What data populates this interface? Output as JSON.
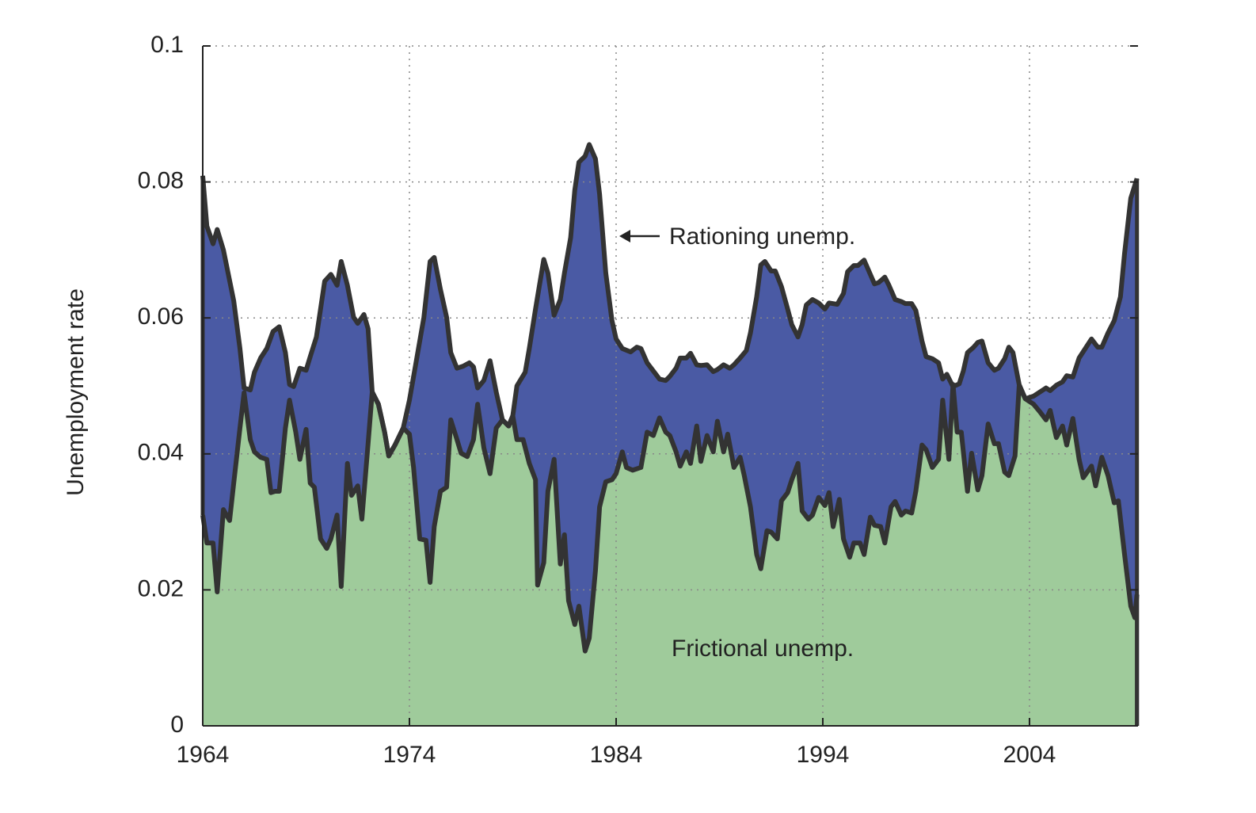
{
  "chart_data": {
    "type": "area",
    "y_label": "Unemployment rate",
    "xlim": [
      1964,
      2009.25
    ],
    "xticks": [
      1964,
      1974,
      1984,
      1994,
      2004
    ],
    "ylim": [
      0,
      0.1
    ],
    "yticks": [
      0,
      0.02,
      0.04,
      0.06,
      0.08,
      0.1
    ],
    "grid": true,
    "line_color": "#333333",
    "annotations": [
      "Rationing unemp.",
      "Frictional unemp."
    ],
    "series": [
      {
        "color": "#4a5aa4",
        "x": [
          1964.0,
          1964.2,
          1964.5,
          1964.7,
          1965.0,
          1965.5,
          1965.8,
          1966.0,
          1966.3,
          1966.5,
          1966.8,
          1967.1,
          1967.4,
          1967.7,
          1968.0,
          1968.2,
          1968.4,
          1968.7,
          1969.0,
          1969.2,
          1969.5,
          1969.9,
          1970.2,
          1970.5,
          1970.7,
          1971.0,
          1971.3,
          1971.5,
          1971.8,
          1972.0,
          1972.2,
          1972.5,
          1972.8,
          1973.0,
          1973.3,
          1973.7,
          1974.0,
          1974.3,
          1974.7,
          1975.0,
          1975.2,
          1975.5,
          1975.8,
          1976.0,
          1976.3,
          1976.6,
          1976.9,
          1977.1,
          1977.3,
          1977.6,
          1977.9,
          1978.2,
          1978.5,
          1978.8,
          1979.0,
          1979.2,
          1979.6,
          1979.8,
          1980.1,
          1980.5,
          1980.7,
          1981.0,
          1981.3,
          1981.5,
          1981.8,
          1982.0,
          1982.2,
          1982.5,
          1982.7,
          1983.0,
          1983.2,
          1983.5,
          1983.8,
          1984.0,
          1984.3,
          1984.7,
          1985.0,
          1985.2,
          1985.5,
          1985.8,
          1986.1,
          1986.4,
          1986.6,
          1986.9,
          1987.1,
          1987.4,
          1987.6,
          1987.9,
          1988.1,
          1988.4,
          1988.7,
          1988.9,
          1989.2,
          1989.5,
          1989.7,
          1990.0,
          1990.3,
          1990.5,
          1990.8,
          1991.0,
          1991.2,
          1991.5,
          1991.7,
          1992.0,
          1992.3,
          1992.5,
          1992.8,
          1993.0,
          1993.2,
          1993.5,
          1993.8,
          1994.1,
          1994.3,
          1994.7,
          1995.0,
          1995.2,
          1995.5,
          1995.7,
          1996.0,
          1996.2,
          1996.5,
          1996.7,
          1997.0,
          1997.2,
          1997.5,
          1997.8,
          1998.0,
          1998.3,
          1998.5,
          1998.8,
          1999.0,
          1999.3,
          1999.6,
          1999.8,
          2000.0,
          2000.3,
          2000.6,
          2000.8,
          2001.0,
          2001.3,
          2001.5,
          2001.7,
          2002.0,
          2002.3,
          2002.5,
          2002.8,
          2003.0,
          2003.2,
          2003.5,
          2003.8,
          2004.2,
          2004.5,
          2004.8,
          2005.0,
          2005.3,
          2005.6,
          2005.8,
          2006.1,
          2006.4,
          2006.7,
          2007.0,
          2007.3,
          2007.5,
          2007.8,
          2008.1,
          2008.4,
          2008.6,
          2008.9,
          2009.2
        ],
        "values": [
          0.0809,
          0.0735,
          0.0709,
          0.073,
          0.07,
          0.0625,
          0.0555,
          0.0497,
          0.0494,
          0.052,
          0.0541,
          0.0555,
          0.058,
          0.0587,
          0.0549,
          0.0502,
          0.0499,
          0.0526,
          0.0523,
          0.0543,
          0.0572,
          0.0654,
          0.0664,
          0.0648,
          0.0683,
          0.0648,
          0.0601,
          0.0592,
          0.0605,
          0.0584,
          0.0491,
          0.0473,
          0.0432,
          0.0397,
          0.0413,
          0.0438,
          0.0479,
          0.0531,
          0.0601,
          0.0683,
          0.0689,
          0.0642,
          0.0601,
          0.0549,
          0.0526,
          0.0529,
          0.0534,
          0.0528,
          0.0497,
          0.0508,
          0.0537,
          0.0491,
          0.045,
          0.0441,
          0.0456,
          0.05,
          0.052,
          0.0555,
          0.0613,
          0.0686,
          0.0666,
          0.0604,
          0.0627,
          0.0666,
          0.0718,
          0.0788,
          0.0829,
          0.0838,
          0.0855,
          0.0834,
          0.0782,
          0.0666,
          0.0596,
          0.0569,
          0.0555,
          0.055,
          0.0557,
          0.0555,
          0.0534,
          0.0522,
          0.051,
          0.0508,
          0.0514,
          0.0526,
          0.0541,
          0.0541,
          0.0548,
          0.0531,
          0.053,
          0.0531,
          0.0521,
          0.0524,
          0.0531,
          0.0526,
          0.0531,
          0.0541,
          0.0552,
          0.0578,
          0.0631,
          0.0678,
          0.0683,
          0.0669,
          0.0669,
          0.0646,
          0.0613,
          0.059,
          0.0572,
          0.059,
          0.0619,
          0.0627,
          0.0622,
          0.0613,
          0.0622,
          0.062,
          0.0636,
          0.0668,
          0.0677,
          0.0677,
          0.0685,
          0.0671,
          0.065,
          0.0652,
          0.066,
          0.0648,
          0.0627,
          0.0624,
          0.0621,
          0.0621,
          0.0611,
          0.0566,
          0.0543,
          0.054,
          0.0534,
          0.051,
          0.0517,
          0.0499,
          0.0503,
          0.0522,
          0.0549,
          0.0557,
          0.0564,
          0.0566,
          0.0534,
          0.0523,
          0.0526,
          0.054,
          0.0557,
          0.0549,
          0.0502,
          0.0481,
          0.0485,
          0.0491,
          0.0497,
          0.0493,
          0.0501,
          0.0506,
          0.0515,
          0.0513,
          0.0541,
          0.0555,
          0.0569,
          0.0557,
          0.0557,
          0.0578,
          0.0596,
          0.0631,
          0.0695,
          0.0776,
          0.0805
        ]
      },
      {
        "color": "#9fcb9b",
        "x": [
          1964.0,
          1964.2,
          1964.5,
          1964.7,
          1965.0,
          1965.3,
          1965.5,
          1965.8,
          1966.0,
          1966.3,
          1966.5,
          1966.8,
          1967.1,
          1967.3,
          1967.5,
          1967.7,
          1968.0,
          1968.2,
          1968.5,
          1968.7,
          1969.0,
          1969.2,
          1969.4,
          1969.7,
          1970.0,
          1970.2,
          1970.5,
          1970.7,
          1971.0,
          1971.2,
          1971.5,
          1971.7,
          1972.0,
          1972.2,
          1972.5,
          1972.8,
          1973.0,
          1973.3,
          1973.7,
          1974.0,
          1974.2,
          1974.5,
          1974.8,
          1975.0,
          1975.2,
          1975.5,
          1975.8,
          1976.0,
          1976.3,
          1976.5,
          1976.8,
          1977.1,
          1977.3,
          1977.6,
          1977.9,
          1978.2,
          1978.5,
          1978.8,
          1979.0,
          1979.2,
          1979.5,
          1979.8,
          1980.1,
          1980.2,
          1980.5,
          1980.7,
          1981.0,
          1981.3,
          1981.5,
          1981.7,
          1982.0,
          1982.2,
          1982.5,
          1982.7,
          1983.0,
          1983.2,
          1983.5,
          1983.8,
          1984.0,
          1984.3,
          1984.5,
          1984.8,
          1985.2,
          1985.5,
          1985.8,
          1986.1,
          1986.4,
          1986.6,
          1986.9,
          1987.1,
          1987.4,
          1987.6,
          1987.9,
          1988.1,
          1988.4,
          1988.7,
          1988.9,
          1989.2,
          1989.4,
          1989.7,
          1990.0,
          1990.2,
          1990.5,
          1990.8,
          1991.0,
          1991.3,
          1991.5,
          1991.8,
          1992.0,
          1992.3,
          1992.5,
          1992.8,
          1993.0,
          1993.3,
          1993.5,
          1993.8,
          1994.1,
          1994.3,
          1994.5,
          1994.8,
          1995.0,
          1995.3,
          1995.5,
          1995.8,
          1996.0,
          1996.3,
          1996.5,
          1996.8,
          1997.0,
          1997.3,
          1997.5,
          1997.8,
          1998.0,
          1998.3,
          1998.5,
          1998.8,
          1999.0,
          1999.3,
          1999.6,
          1999.8,
          2000.1,
          2000.3,
          2000.5,
          2000.7,
          2001.0,
          2001.2,
          2001.5,
          2001.7,
          2002.0,
          2002.3,
          2002.5,
          2002.8,
          2003.0,
          2003.3,
          2003.5,
          2003.8,
          2004.2,
          2004.5,
          2004.8,
          2005.0,
          2005.3,
          2005.6,
          2005.8,
          2006.1,
          2006.4,
          2006.6,
          2007.0,
          2007.2,
          2007.5,
          2007.8,
          2008.1,
          2008.3,
          2008.6,
          2008.9,
          2009.1,
          2009.2
        ],
        "values": [
          0.031,
          0.0269,
          0.0269,
          0.0197,
          0.0318,
          0.0302,
          0.0357,
          0.0438,
          0.049,
          0.0421,
          0.0403,
          0.0395,
          0.0392,
          0.0343,
          0.0345,
          0.0345,
          0.0438,
          0.0479,
          0.0432,
          0.0392,
          0.0436,
          0.0357,
          0.0351,
          0.0275,
          0.0261,
          0.0275,
          0.031,
          0.0205,
          0.0386,
          0.0339,
          0.0353,
          0.0304,
          0.0415,
          0.0491,
          0.0473,
          0.0432,
          0.0397,
          0.0413,
          0.0438,
          0.0429,
          0.038,
          0.0275,
          0.0273,
          0.0211,
          0.0293,
          0.0345,
          0.0351,
          0.045,
          0.0421,
          0.0401,
          0.0396,
          0.0421,
          0.0473,
          0.0409,
          0.0371,
          0.0438,
          0.045,
          0.0441,
          0.0456,
          0.0421,
          0.0421,
          0.0386,
          0.0362,
          0.0207,
          0.024,
          0.0345,
          0.0392,
          0.0238,
          0.0281,
          0.0184,
          0.0149,
          0.0176,
          0.011,
          0.0129,
          0.0228,
          0.0322,
          0.0359,
          0.0362,
          0.0371,
          0.0403,
          0.038,
          0.0376,
          0.038,
          0.0432,
          0.0427,
          0.0453,
          0.0432,
          0.0427,
          0.0403,
          0.0382,
          0.0403,
          0.0386,
          0.0441,
          0.0389,
          0.0427,
          0.0403,
          0.0448,
          0.0403,
          0.0429,
          0.038,
          0.0395,
          0.0368,
          0.0322,
          0.0252,
          0.0231,
          0.0287,
          0.0285,
          0.0275,
          0.0331,
          0.0343,
          0.0362,
          0.0386,
          0.0316,
          0.0304,
          0.031,
          0.0336,
          0.0324,
          0.0343,
          0.0293,
          0.0333,
          0.0275,
          0.0248,
          0.0269,
          0.0269,
          0.0252,
          0.0307,
          0.0295,
          0.0293,
          0.0269,
          0.0322,
          0.033,
          0.031,
          0.0316,
          0.0313,
          0.0345,
          0.0413,
          0.0406,
          0.038,
          0.0392,
          0.0479,
          0.0392,
          0.0502,
          0.0432,
          0.0432,
          0.0345,
          0.0401,
          0.0347,
          0.0368,
          0.0444,
          0.0415,
          0.0415,
          0.0373,
          0.0368,
          0.0397,
          0.05,
          0.0481,
          0.0473,
          0.0462,
          0.045,
          0.0464,
          0.0424,
          0.0441,
          0.0413,
          0.0452,
          0.0392,
          0.0365,
          0.0382,
          0.0353,
          0.0395,
          0.0368,
          0.0328,
          0.0331,
          0.0252,
          0.0176,
          0.0159,
          0.0193
        ]
      }
    ]
  }
}
